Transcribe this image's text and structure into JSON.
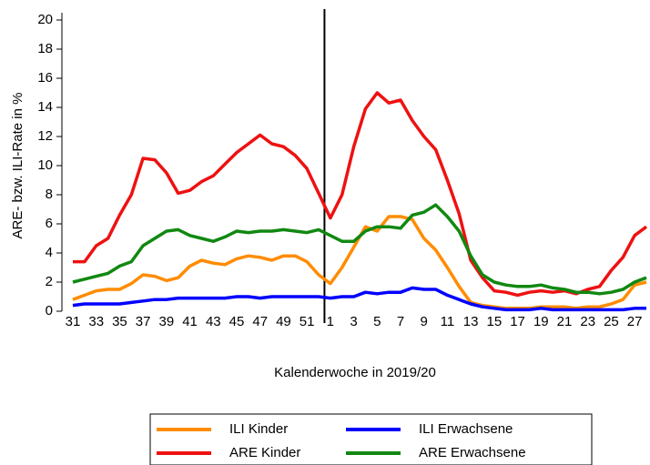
{
  "chart_data": {
    "type": "line",
    "y_label": "ARE- bzw. ILI-Rate in %",
    "x_label": "Kalenderwoche in 2019/20",
    "categories": [
      "31",
      null,
      "33",
      null,
      "35",
      null,
      "37",
      null,
      "39",
      null,
      "41",
      null,
      "43",
      null,
      "45",
      null,
      "47",
      null,
      "49",
      null,
      "51",
      null,
      "1",
      null,
      "3",
      null,
      "5",
      null,
      "7",
      null,
      "9",
      null,
      "11",
      null,
      "13",
      null,
      "15",
      null,
      "17",
      null,
      "19",
      null,
      "21",
      null,
      "23",
      null,
      "25",
      null,
      "27",
      null
    ],
    "series": [
      {
        "name": "ILI Kinder",
        "color": "#ff8c00",
        "values": [
          0.8,
          1.1,
          1.4,
          1.5,
          1.5,
          1.9,
          2.5,
          2.4,
          2.1,
          2.3,
          3.1,
          3.5,
          3.3,
          3.2,
          3.6,
          3.8,
          3.7,
          3.5,
          3.8,
          3.8,
          3.4,
          2.5,
          1.9,
          3.0,
          4.4,
          5.8,
          5.5,
          6.5,
          6.5,
          6.3,
          5.0,
          4.2,
          3.0,
          1.7,
          0.6,
          0.4,
          0.3,
          0.2,
          0.2,
          0.2,
          0.3,
          0.3,
          0.3,
          0.2,
          0.3,
          0.3,
          0.5,
          0.8,
          1.8,
          2.0
        ]
      },
      {
        "name": "ILI Erwachsene",
        "color": "#0000ff",
        "values": [
          0.4,
          0.5,
          0.5,
          0.5,
          0.5,
          0.6,
          0.7,
          0.8,
          0.8,
          0.9,
          0.9,
          0.9,
          0.9,
          0.9,
          1.0,
          1.0,
          0.9,
          1.0,
          1.0,
          1.0,
          1.0,
          1.0,
          0.9,
          1.0,
          1.0,
          1.3,
          1.2,
          1.3,
          1.3,
          1.6,
          1.5,
          1.5,
          1.1,
          0.8,
          0.5,
          0.3,
          0.2,
          0.1,
          0.1,
          0.1,
          0.2,
          0.1,
          0.1,
          0.1,
          0.1,
          0.1,
          0.1,
          0.1,
          0.2,
          0.2
        ]
      },
      {
        "name": "ARE Kinder",
        "color": "#ee1111",
        "values": [
          3.4,
          3.4,
          4.5,
          5.0,
          6.6,
          8.0,
          10.5,
          10.4,
          9.5,
          8.1,
          8.3,
          8.9,
          9.3,
          10.1,
          10.9,
          11.5,
          12.1,
          11.5,
          11.3,
          10.7,
          9.8,
          8.1,
          6.4,
          8.0,
          11.3,
          13.9,
          15.0,
          14.3,
          14.5,
          13.1,
          12.0,
          11.1,
          9.0,
          6.7,
          3.5,
          2.3,
          1.4,
          1.3,
          1.1,
          1.3,
          1.4,
          1.3,
          1.4,
          1.2,
          1.5,
          1.7,
          2.8,
          3.7,
          5.2,
          5.8
        ]
      },
      {
        "name": "ARE Erwachsene",
        "color": "#118811",
        "values": [
          2.0,
          2.2,
          2.4,
          2.6,
          3.1,
          3.4,
          4.5,
          5.0,
          5.5,
          5.6,
          5.2,
          5.0,
          4.8,
          5.1,
          5.5,
          5.4,
          5.5,
          5.5,
          5.6,
          5.5,
          5.4,
          5.6,
          5.2,
          4.8,
          4.8,
          5.5,
          5.8,
          5.8,
          5.7,
          6.6,
          6.8,
          7.3,
          6.5,
          5.5,
          3.8,
          2.5,
          2.0,
          1.8,
          1.7,
          1.7,
          1.8,
          1.6,
          1.5,
          1.3,
          1.3,
          1.2,
          1.3,
          1.5,
          2.0,
          2.3
        ]
      }
    ],
    "ylim": [
      0,
      20
    ],
    "yticks": [
      0,
      2,
      4,
      6,
      8,
      10,
      12,
      14,
      16,
      18,
      20
    ],
    "grid": false,
    "legend": "bottom"
  }
}
